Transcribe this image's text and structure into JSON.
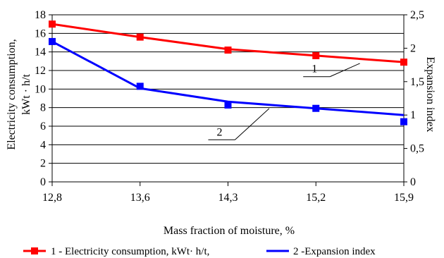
{
  "chart_data": {
    "type": "line",
    "categories": [
      "12,8",
      "13,6",
      "14,3",
      "15,2",
      "15,9"
    ],
    "xlabel": "Mass fraction of moisture, %",
    "ylabel_left": [
      "Electricity consumption,",
      "kWt · h/t"
    ],
    "ylabel_right": "Expansion index",
    "y_left": {
      "range": [
        0,
        18
      ],
      "ticks": [
        0,
        2,
        4,
        6,
        8,
        10,
        12,
        14,
        16,
        18
      ],
      "tick_labels": [
        "0",
        "2",
        "4",
        "6",
        "8",
        "10",
        "12",
        "14",
        "16",
        "18"
      ]
    },
    "y_right": {
      "range": [
        0,
        2.5
      ],
      "ticks": [
        0,
        0.5,
        1,
        1.5,
        2,
        2.5
      ],
      "tick_labels": [
        "0",
        "0,5",
        "1",
        "1,5",
        "2",
        "2,5"
      ]
    },
    "grid": "horizontal",
    "series": [
      {
        "label": "1",
        "name": "1 - Electricity consumption, kWt· h/t,",
        "axis": "left",
        "color": "#ff0000",
        "marker_values": [
          17.0,
          15.6,
          14.2,
          13.6,
          12.9
        ],
        "line_values": [
          17.0,
          15.6,
          14.3,
          13.6,
          12.9
        ]
      },
      {
        "label": "2",
        "name": "2 -Expansion index",
        "axis": "right",
        "color": "#0000ff",
        "marker_values": [
          2.1,
          1.43,
          1.15,
          1.1,
          0.9
        ],
        "line_values": [
          2.1,
          1.4,
          1.2,
          1.1,
          1.0
        ]
      }
    ],
    "legend_position": "bottom"
  }
}
